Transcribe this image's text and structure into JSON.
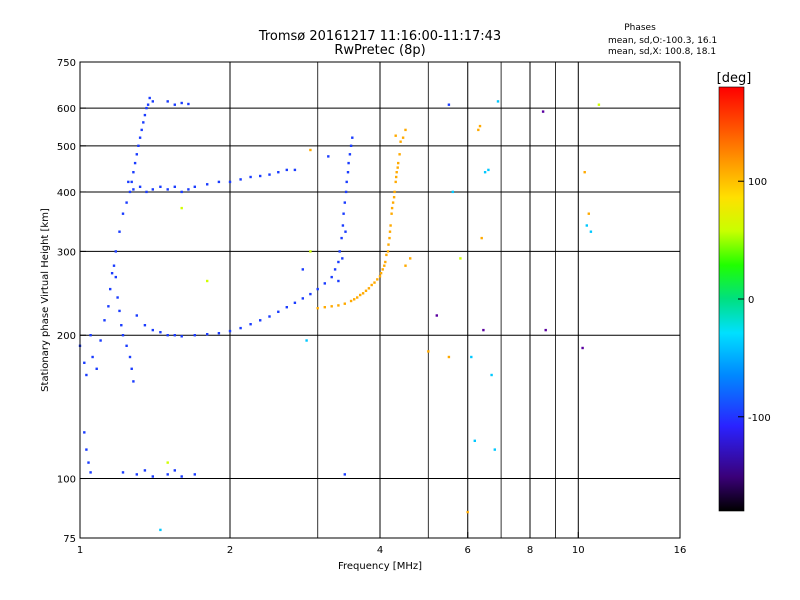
{
  "chart_data": {
    "type": "scatter",
    "title": "Tromsø 20161217 11:16:00-11:17:43",
    "subtitle": "RwPretec (8p)",
    "legend_title": "Phases",
    "legend_lines": [
      "mean, sd,O:-100.3, 16.1",
      "mean, sd,X: 100.8, 18.1"
    ],
    "xlabel": "Frequency [MHz]",
    "ylabel": "Stationary phase Virtual Height [km]",
    "x_scale": "log",
    "y_scale": "log",
    "xlim": [
      1,
      16
    ],
    "ylim": [
      75,
      750
    ],
    "x_ticks": [
      1,
      2,
      4,
      6,
      8,
      10,
      16
    ],
    "x_gridlines": [
      2,
      4,
      6,
      8,
      10
    ],
    "x_minor_gridlines": [
      3,
      5,
      7,
      9
    ],
    "y_ticks": [
      75,
      100,
      200,
      300,
      400,
      500,
      600,
      750
    ],
    "y_gridlines": [
      100,
      200,
      300,
      400,
      500,
      600
    ],
    "colorbar": {
      "label": "[deg]",
      "range": [
        -180,
        180
      ],
      "ticks": [
        -100,
        0,
        100
      ]
    },
    "series": [
      {
        "mode": "O",
        "phase": -100,
        "color": "#1a3cff",
        "points": [
          [
            1.0,
            190
          ],
          [
            1.02,
            175
          ],
          [
            1.03,
            165
          ],
          [
            1.05,
            200
          ],
          [
            1.06,
            180
          ],
          [
            1.08,
            170
          ],
          [
            1.1,
            195
          ],
          [
            1.12,
            215
          ],
          [
            1.14,
            230
          ],
          [
            1.15,
            250
          ],
          [
            1.16,
            270
          ],
          [
            1.17,
            280
          ],
          [
            1.18,
            265
          ],
          [
            1.19,
            240
          ],
          [
            1.2,
            225
          ],
          [
            1.21,
            210
          ],
          [
            1.22,
            200
          ],
          [
            1.24,
            190
          ],
          [
            1.26,
            180
          ],
          [
            1.27,
            170
          ],
          [
            1.28,
            160
          ],
          [
            1.18,
            300
          ],
          [
            1.2,
            330
          ],
          [
            1.22,
            360
          ],
          [
            1.24,
            380
          ],
          [
            1.26,
            400
          ],
          [
            1.27,
            420
          ],
          [
            1.28,
            440
          ],
          [
            1.29,
            460
          ],
          [
            1.3,
            480
          ],
          [
            1.31,
            500
          ],
          [
            1.32,
            520
          ],
          [
            1.33,
            540
          ],
          [
            1.34,
            560
          ],
          [
            1.35,
            580
          ],
          [
            1.36,
            600
          ],
          [
            1.37,
            610
          ],
          [
            1.38,
            630
          ],
          [
            1.4,
            620
          ],
          [
            1.25,
            420
          ],
          [
            1.28,
            405
          ],
          [
            1.32,
            410
          ],
          [
            1.36,
            400
          ],
          [
            1.4,
            405
          ],
          [
            1.45,
            410
          ],
          [
            1.5,
            405
          ],
          [
            1.55,
            410
          ],
          [
            1.6,
            400
          ],
          [
            1.65,
            405
          ],
          [
            1.7,
            410
          ],
          [
            1.8,
            415
          ],
          [
            1.9,
            420
          ],
          [
            2.0,
            420
          ],
          [
            2.1,
            425
          ],
          [
            2.2,
            430
          ],
          [
            2.3,
            432
          ],
          [
            2.4,
            435
          ],
          [
            2.5,
            440
          ],
          [
            2.6,
            445
          ],
          [
            2.7,
            445
          ],
          [
            1.3,
            220
          ],
          [
            1.35,
            210
          ],
          [
            1.4,
            205
          ],
          [
            1.45,
            203
          ],
          [
            1.5,
            200
          ],
          [
            1.55,
            200
          ],
          [
            1.6,
            199
          ],
          [
            1.7,
            200
          ],
          [
            1.8,
            201
          ],
          [
            1.9,
            202
          ],
          [
            2.0,
            204
          ],
          [
            2.1,
            207
          ],
          [
            2.2,
            211
          ],
          [
            2.3,
            215
          ],
          [
            2.4,
            219
          ],
          [
            2.5,
            224
          ],
          [
            2.6,
            229
          ],
          [
            2.7,
            234
          ],
          [
            2.8,
            239
          ],
          [
            2.9,
            244
          ],
          [
            3.0,
            250
          ],
          [
            3.1,
            257
          ],
          [
            3.2,
            265
          ],
          [
            3.25,
            275
          ],
          [
            3.3,
            285
          ],
          [
            3.32,
            300
          ],
          [
            3.35,
            320
          ],
          [
            3.37,
            340
          ],
          [
            3.38,
            360
          ],
          [
            3.4,
            380
          ],
          [
            3.42,
            400
          ],
          [
            3.43,
            420
          ],
          [
            3.45,
            440
          ],
          [
            3.46,
            460
          ],
          [
            3.48,
            480
          ],
          [
            3.5,
            500
          ],
          [
            3.52,
            520
          ],
          [
            3.3,
            260
          ],
          [
            3.36,
            290
          ],
          [
            3.41,
            330
          ],
          [
            1.02,
            125
          ],
          [
            1.03,
            115
          ],
          [
            1.04,
            108
          ],
          [
            1.05,
            103
          ],
          [
            1.22,
            103
          ],
          [
            1.3,
            102
          ],
          [
            1.35,
            104
          ],
          [
            1.4,
            101
          ],
          [
            1.5,
            102
          ],
          [
            1.55,
            104
          ],
          [
            1.6,
            101
          ],
          [
            1.7,
            102
          ],
          [
            1.5,
            620
          ],
          [
            1.55,
            610
          ],
          [
            1.6,
            615
          ],
          [
            1.65,
            612
          ],
          [
            2.8,
            275
          ],
          [
            3.15,
            475
          ],
          [
            3.4,
            102
          ],
          [
            5.5,
            610
          ]
        ]
      },
      {
        "mode": "X",
        "phase": 100,
        "color": "#ffaa00",
        "points": [
          [
            3.0,
            228
          ],
          [
            3.1,
            229
          ],
          [
            3.2,
            230
          ],
          [
            3.3,
            231
          ],
          [
            3.4,
            233
          ],
          [
            3.5,
            236
          ],
          [
            3.6,
            240
          ],
          [
            3.7,
            245
          ],
          [
            3.8,
            251
          ],
          [
            3.9,
            258
          ],
          [
            4.0,
            266
          ],
          [
            4.05,
            275
          ],
          [
            4.1,
            285
          ],
          [
            4.15,
            300
          ],
          [
            4.18,
            320
          ],
          [
            4.2,
            340
          ],
          [
            4.22,
            360
          ],
          [
            4.25,
            380
          ],
          [
            4.28,
            400
          ],
          [
            4.3,
            420
          ],
          [
            4.32,
            440
          ],
          [
            4.35,
            460
          ],
          [
            4.38,
            480
          ],
          [
            3.55,
            238
          ],
          [
            3.65,
            243
          ],
          [
            3.75,
            248
          ],
          [
            3.85,
            255
          ],
          [
            3.95,
            262
          ],
          [
            4.02,
            270
          ],
          [
            4.08,
            280
          ],
          [
            4.12,
            295
          ],
          [
            4.16,
            310
          ],
          [
            4.19,
            330
          ],
          [
            4.23,
            370
          ],
          [
            4.27,
            390
          ],
          [
            4.31,
            430
          ],
          [
            4.34,
            450
          ],
          [
            4.45,
            520
          ],
          [
            4.5,
            540
          ],
          [
            4.3,
            525
          ],
          [
            4.4,
            510
          ],
          [
            4.5,
            280
          ],
          [
            4.6,
            290
          ],
          [
            5.0,
            185
          ],
          [
            5.5,
            180
          ],
          [
            6.0,
            85
          ],
          [
            6.3,
            540
          ],
          [
            6.35,
            550
          ],
          [
            6.4,
            320
          ],
          [
            10.3,
            440
          ],
          [
            10.5,
            360
          ],
          [
            2.9,
            490
          ]
        ]
      },
      {
        "mode": "scatter",
        "phase": 10,
        "color": "#00c8ff",
        "points": [
          [
            6.1,
            180
          ],
          [
            6.2,
            120
          ],
          [
            6.5,
            440
          ],
          [
            6.6,
            445
          ],
          [
            6.7,
            165
          ],
          [
            6.8,
            115
          ],
          [
            6.9,
            620
          ],
          [
            10.4,
            340
          ],
          [
            10.6,
            330
          ],
          [
            5.6,
            400
          ],
          [
            1.45,
            78
          ],
          [
            2.85,
            195
          ]
        ]
      },
      {
        "mode": "scatter",
        "phase": -150,
        "color": "#5a00a0",
        "points": [
          [
            8.5,
            590
          ],
          [
            10.2,
            188
          ],
          [
            6.45,
            205
          ],
          [
            8.6,
            205
          ],
          [
            5.2,
            220
          ]
        ]
      },
      {
        "mode": "scatter",
        "phase": 60,
        "color": "#d0ff00",
        "points": [
          [
            1.5,
            108
          ],
          [
            1.6,
            370
          ],
          [
            1.8,
            260
          ],
          [
            2.9,
            300
          ],
          [
            5.8,
            290
          ],
          [
            11.0,
            610
          ]
        ]
      }
    ]
  }
}
